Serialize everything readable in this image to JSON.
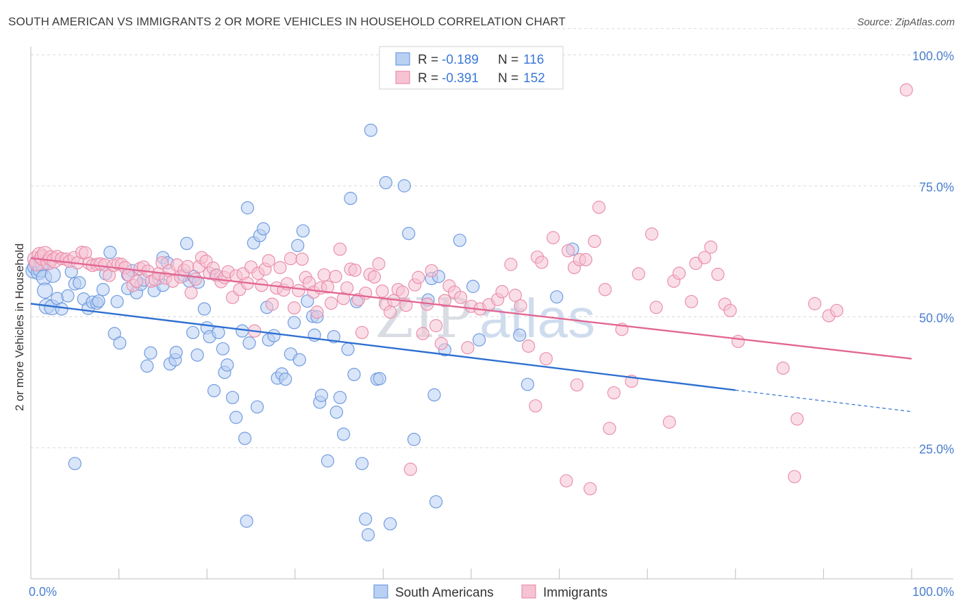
{
  "title": "SOUTH AMERICAN VS IMMIGRANTS 2 OR MORE VEHICLES IN HOUSEHOLD CORRELATION CHART",
  "source": "Source: ZipAtlas.com",
  "watermark": {
    "zip": "ZIP",
    "atlas": "atlas"
  },
  "colors": {
    "blue_fill": "#b9d0f3",
    "blue_stroke": "#6f9be0",
    "blue_line": "#2e6fd1",
    "pink_fill": "#f6c3d3",
    "pink_stroke": "#ea8fab",
    "pink_line": "#e26592",
    "tick_text": "#4a7fd0",
    "grid": "#d8d8d8"
  },
  "legend": {
    "rows": [
      {
        "r_label": "R = ",
        "r_value": "-0.189",
        "n_label": "N = ",
        "n_value": "116",
        "color": "blue"
      },
      {
        "r_label": "R = ",
        "r_value": "-0.391",
        "n_label": "N = ",
        "n_value": "152",
        "color": "pink"
      }
    ]
  },
  "bottom_legend": [
    "South Americans",
    "Immigrants"
  ],
  "chart_data": {
    "type": "scatter",
    "ylabel": "2 or more Vehicles in Household",
    "xlabel": "",
    "xlim": [
      0,
      100
    ],
    "ylim": [
      0,
      105
    ],
    "x_tick_labels": [
      "0.0%",
      "100.0%"
    ],
    "y_ticks": [
      25,
      50,
      75,
      100
    ],
    "y_tick_labels": [
      "25.0%",
      "50.0%",
      "75.0%",
      "100.0%"
    ],
    "grid": "horizontal dashed",
    "legend_position": "top-center",
    "series": [
      {
        "name": "South Americans",
        "color": "blue",
        "r": -0.189,
        "n": 116,
        "trend": {
          "x": [
            0,
            80
          ],
          "y": [
            52.5,
            36.0
          ],
          "dashed_extension": {
            "x": [
              80,
              100
            ],
            "y": [
              36.0,
              31.9
            ]
          }
        },
        "points": [
          [
            0.3,
            58.8
          ],
          [
            0.5,
            59.5
          ],
          [
            0.7,
            60.3
          ],
          [
            0.9,
            58.5
          ],
          [
            1.1,
            59.0
          ],
          [
            1.3,
            60.2
          ],
          [
            1.5,
            57.5
          ],
          [
            1.6,
            55.0
          ],
          [
            1.8,
            52.0
          ],
          [
            2.4,
            51.8
          ],
          [
            3.0,
            53.5
          ],
          [
            3.5,
            51.5
          ],
          [
            4.2,
            54.0
          ],
          [
            4.6,
            58.6
          ],
          [
            5.0,
            56.3
          ],
          [
            5.5,
            56.5
          ],
          [
            6.0,
            53.4
          ],
          [
            6.5,
            51.6
          ],
          [
            7.0,
            52.8
          ],
          [
            7.5,
            52.6
          ],
          [
            7.7,
            53.0
          ],
          [
            8.2,
            55.2
          ],
          [
            8.5,
            58.2
          ],
          [
            9.0,
            62.3
          ],
          [
            9.5,
            46.8
          ],
          [
            9.8,
            52.9
          ],
          [
            10.1,
            45.0
          ],
          [
            11.0,
            55.4
          ],
          [
            11.5,
            58.8
          ],
          [
            12.0,
            54.6
          ],
          [
            12.5,
            56.2
          ],
          [
            12.8,
            57.0
          ],
          [
            13.2,
            40.6
          ],
          [
            13.6,
            43.1
          ],
          [
            14.0,
            55.0
          ],
          [
            14.5,
            57.3
          ],
          [
            15.0,
            61.3
          ],
          [
            15.5,
            60.3
          ],
          [
            15.8,
            41.0
          ],
          [
            16.4,
            41.8
          ],
          [
            16.5,
            43.2
          ],
          [
            17.4,
            57.9
          ],
          [
            17.7,
            64.0
          ],
          [
            18.0,
            56.8
          ],
          [
            18.4,
            47.0
          ],
          [
            18.5,
            57.7
          ],
          [
            18.9,
            42.7
          ],
          [
            19.0,
            56.6
          ],
          [
            19.7,
            51.5
          ],
          [
            20.0,
            47.9
          ],
          [
            20.3,
            46.2
          ],
          [
            20.8,
            35.9
          ],
          [
            21.3,
            47.0
          ],
          [
            21.8,
            43.9
          ],
          [
            22.0,
            39.4
          ],
          [
            22.3,
            40.8
          ],
          [
            22.9,
            34.6
          ],
          [
            23.3,
            30.8
          ],
          [
            24.0,
            47.3
          ],
          [
            24.3,
            26.8
          ],
          [
            24.6,
            70.8
          ],
          [
            24.8,
            45.0
          ],
          [
            25.3,
            64.1
          ],
          [
            25.7,
            32.8
          ],
          [
            26.0,
            65.5
          ],
          [
            26.4,
            66.8
          ],
          [
            26.8,
            51.8
          ],
          [
            27.0,
            45.6
          ],
          [
            27.6,
            46.4
          ],
          [
            28.0,
            38.3
          ],
          [
            28.5,
            39.1
          ],
          [
            28.9,
            38.1
          ],
          [
            29.5,
            42.9
          ],
          [
            29.9,
            48.9
          ],
          [
            30.3,
            63.6
          ],
          [
            30.5,
            41.8
          ],
          [
            30.9,
            66.4
          ],
          [
            31.4,
            53.0
          ],
          [
            32.0,
            50.1
          ],
          [
            32.2,
            46.5
          ],
          [
            32.5,
            50.0
          ],
          [
            32.8,
            33.7
          ],
          [
            33.0,
            35.0
          ],
          [
            33.7,
            22.5
          ],
          [
            34.4,
            46.2
          ],
          [
            34.7,
            31.8
          ],
          [
            35.1,
            34.6
          ],
          [
            35.5,
            27.6
          ],
          [
            36.0,
            43.8
          ],
          [
            36.3,
            72.6
          ],
          [
            36.7,
            39.0
          ],
          [
            37.0,
            52.9
          ],
          [
            37.6,
            22.0
          ],
          [
            38.0,
            11.4
          ],
          [
            38.3,
            8.4
          ],
          [
            38.6,
            85.6
          ],
          [
            39.3,
            38.1
          ],
          [
            39.6,
            38.2
          ],
          [
            40.3,
            75.6
          ],
          [
            40.8,
            10.5
          ],
          [
            42.4,
            75.0
          ],
          [
            42.9,
            65.9
          ],
          [
            43.5,
            26.6
          ],
          [
            45.1,
            53.2
          ],
          [
            45.5,
            57.3
          ],
          [
            45.8,
            35.1
          ],
          [
            46.0,
            14.7
          ],
          [
            46.3,
            57.7
          ],
          [
            47.0,
            43.7
          ],
          [
            48.7,
            64.6
          ],
          [
            50.2,
            55.8
          ],
          [
            50.9,
            45.6
          ],
          [
            55.5,
            46.5
          ],
          [
            56.4,
            37.1
          ],
          [
            59.7,
            53.8
          ],
          [
            61.5,
            62.9
          ],
          [
            21.0,
            58.0
          ],
          [
            11.0,
            58.0
          ],
          [
            15.0,
            56.0
          ],
          [
            5.0,
            22.0
          ],
          [
            24.5,
            11.0
          ],
          [
            2.5,
            58.0
          ]
        ]
      },
      {
        "name": "Immigrants",
        "color": "pink",
        "r": -0.391,
        "n": 152,
        "trend": {
          "x": [
            0,
            100
          ],
          "y": [
            61.2,
            42.0
          ]
        },
        "points": [
          [
            0.5,
            61.0
          ],
          [
            0.7,
            60.2
          ],
          [
            1.0,
            61.8
          ],
          [
            1.3,
            61.3
          ],
          [
            1.6,
            62.0
          ],
          [
            2.0,
            60.4
          ],
          [
            2.3,
            61.2
          ],
          [
            2.7,
            60.8
          ],
          [
            3.0,
            61.5
          ],
          [
            3.5,
            61.1
          ],
          [
            4.0,
            61.0
          ],
          [
            4.4,
            60.6
          ],
          [
            4.9,
            61.3
          ],
          [
            5.3,
            60.3
          ],
          [
            5.8,
            62.3
          ],
          [
            6.2,
            62.2
          ],
          [
            6.6,
            60.2
          ],
          [
            7.0,
            59.8
          ],
          [
            7.5,
            60.0
          ],
          [
            7.9,
            60.1
          ],
          [
            8.4,
            59.9
          ],
          [
            8.9,
            57.9
          ],
          [
            9.4,
            59.8
          ],
          [
            9.9,
            60.1
          ],
          [
            10.3,
            60.0
          ],
          [
            10.7,
            59.4
          ],
          [
            11.1,
            58.0
          ],
          [
            11.6,
            56.0
          ],
          [
            12.0,
            56.8
          ],
          [
            12.4,
            59.2
          ],
          [
            12.8,
            59.5
          ],
          [
            13.3,
            58.7
          ],
          [
            13.7,
            56.8
          ],
          [
            14.1,
            57.1
          ],
          [
            14.5,
            58.2
          ],
          [
            14.9,
            60.3
          ],
          [
            15.3,
            57.4
          ],
          [
            15.7,
            58.8
          ],
          [
            16.1,
            56.8
          ],
          [
            16.6,
            59.9
          ],
          [
            17.0,
            57.6
          ],
          [
            17.4,
            58.9
          ],
          [
            17.8,
            59.6
          ],
          [
            18.2,
            54.6
          ],
          [
            18.7,
            57.2
          ],
          [
            19.1,
            59.6
          ],
          [
            19.4,
            61.3
          ],
          [
            19.9,
            60.6
          ],
          [
            20.3,
            58.3
          ],
          [
            20.7,
            59.3
          ],
          [
            21.1,
            57.9
          ],
          [
            21.6,
            56.7
          ],
          [
            22.0,
            57.5
          ],
          [
            22.4,
            58.6
          ],
          [
            22.9,
            53.7
          ],
          [
            23.3,
            57.8
          ],
          [
            23.7,
            55.2
          ],
          [
            24.1,
            58.2
          ],
          [
            24.6,
            56.4
          ],
          [
            25.0,
            59.5
          ],
          [
            25.4,
            47.3
          ],
          [
            25.8,
            58.3
          ],
          [
            26.2,
            56.0
          ],
          [
            26.6,
            59.1
          ],
          [
            27.0,
            60.7
          ],
          [
            27.4,
            52.4
          ],
          [
            27.9,
            55.5
          ],
          [
            28.3,
            59.4
          ],
          [
            28.7,
            55.1
          ],
          [
            29.1,
            56.3
          ],
          [
            29.5,
            61.1
          ],
          [
            29.9,
            51.7
          ],
          [
            30.4,
            55.0
          ],
          [
            30.8,
            61.0
          ],
          [
            31.2,
            57.5
          ],
          [
            31.6,
            56.5
          ],
          [
            32.1,
            54.7
          ],
          [
            32.5,
            50.9
          ],
          [
            32.9,
            55.5
          ],
          [
            33.3,
            58.0
          ],
          [
            33.7,
            55.7
          ],
          [
            34.1,
            52.6
          ],
          [
            34.6,
            57.7
          ],
          [
            35.1,
            62.9
          ],
          [
            35.5,
            53.5
          ],
          [
            35.9,
            55.5
          ],
          [
            36.3,
            59.1
          ],
          [
            36.8,
            58.9
          ],
          [
            37.2,
            53.3
          ],
          [
            37.6,
            47.0
          ],
          [
            38.0,
            54.5
          ],
          [
            38.5,
            58.1
          ],
          [
            39.0,
            57.6
          ],
          [
            39.5,
            60.1
          ],
          [
            39.9,
            54.9
          ],
          [
            40.3,
            52.4
          ],
          [
            40.8,
            50.9
          ],
          [
            41.2,
            53.1
          ],
          [
            41.7,
            55.2
          ],
          [
            42.2,
            54.7
          ],
          [
            42.6,
            52.2
          ],
          [
            43.1,
            20.9
          ],
          [
            43.6,
            56.1
          ],
          [
            44.0,
            57.5
          ],
          [
            44.5,
            46.8
          ],
          [
            45.0,
            52.4
          ],
          [
            45.5,
            58.8
          ],
          [
            46.0,
            48.3
          ],
          [
            46.6,
            44.9
          ],
          [
            47.0,
            53.1
          ],
          [
            47.5,
            55.9
          ],
          [
            48.1,
            54.7
          ],
          [
            48.8,
            53.7
          ],
          [
            49.6,
            44.1
          ],
          [
            50.0,
            52.0
          ],
          [
            51.0,
            51.5
          ],
          [
            52.0,
            52.3
          ],
          [
            53.0,
            53.3
          ],
          [
            53.5,
            54.8
          ],
          [
            54.5,
            60.0
          ],
          [
            55.0,
            54.1
          ],
          [
            55.6,
            52.1
          ],
          [
            56.5,
            44.4
          ],
          [
            57.5,
            61.4
          ],
          [
            58.0,
            60.4
          ],
          [
            59.3,
            65.1
          ],
          [
            61.0,
            62.6
          ],
          [
            61.7,
            59.4
          ],
          [
            62.3,
            60.9
          ],
          [
            63.0,
            60.9
          ],
          [
            64.0,
            64.4
          ],
          [
            64.5,
            70.9
          ],
          [
            65.2,
            55.2
          ],
          [
            66.2,
            35.5
          ],
          [
            67.1,
            47.6
          ],
          [
            68.2,
            37.7
          ],
          [
            69.0,
            58.2
          ],
          [
            70.5,
            65.8
          ],
          [
            71.0,
            51.8
          ],
          [
            72.5,
            29.9
          ],
          [
            73.0,
            56.8
          ],
          [
            73.6,
            58.3
          ],
          [
            75.0,
            52.9
          ],
          [
            75.5,
            60.2
          ],
          [
            76.5,
            61.3
          ],
          [
            77.2,
            63.3
          ],
          [
            78.0,
            58.1
          ],
          [
            78.8,
            52.4
          ],
          [
            79.4,
            51.2
          ],
          [
            80.3,
            45.3
          ],
          [
            85.4,
            40.2
          ],
          [
            86.7,
            19.5
          ],
          [
            87.0,
            30.5
          ],
          [
            89.0,
            52.5
          ],
          [
            90.6,
            50.2
          ],
          [
            91.5,
            51.2
          ],
          [
            99.4,
            93.3
          ],
          [
            62.0,
            37.0
          ],
          [
            58.5,
            42.0
          ],
          [
            57.3,
            33.0
          ],
          [
            60.8,
            18.7
          ],
          [
            63.5,
            17.2
          ],
          [
            65.7,
            28.7
          ]
        ]
      }
    ]
  }
}
